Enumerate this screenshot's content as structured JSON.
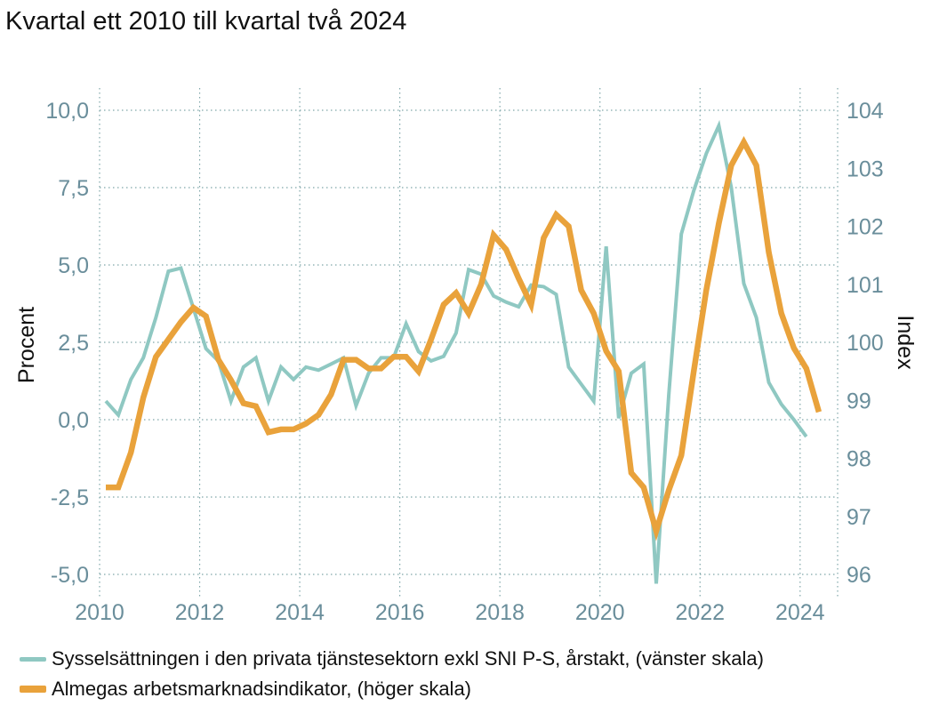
{
  "title": "Kvartal ett 2010 till kvartal två 2024",
  "chart_data": {
    "type": "line",
    "left_axis": {
      "label": "Procent",
      "range": [
        -5.4,
        10.0
      ],
      "ticks": [
        -5.0,
        -2.5,
        0.0,
        2.5,
        5.0,
        7.5,
        10.0
      ],
      "tick_labels": [
        "-5,0",
        "-2,5",
        "0,0",
        "2,5",
        "5,0",
        "7,5",
        "10,0"
      ]
    },
    "right_axis": {
      "label": "Index",
      "range": [
        95.8,
        104.0
      ],
      "ticks": [
        96,
        97,
        98,
        99,
        100,
        101,
        102,
        103,
        104
      ],
      "tick_labels": [
        "96",
        "97",
        "98",
        "99",
        "100",
        "101",
        "102",
        "103",
        "104"
      ]
    },
    "x_axis": {
      "range": [
        2010.0,
        2024.75
      ],
      "ticks": [
        2010,
        2012,
        2014,
        2016,
        2018,
        2020,
        2022,
        2024
      ],
      "tick_labels": [
        "2010",
        "2012",
        "2014",
        "2016",
        "2018",
        "2020",
        "2022",
        "2024"
      ]
    },
    "grid": true,
    "legend_position": "bottom",
    "series": [
      {
        "name": "Sysselsättningen i den privata tjänstesektorn exkl SNI P-S, årstakt, (vänster skala)",
        "axis": "left",
        "color": "#8FC8C2",
        "points": [
          [
            2010.125,
            0.6
          ],
          [
            2010.375,
            0.15
          ],
          [
            2010.625,
            1.3
          ],
          [
            2010.875,
            2.0
          ],
          [
            2011.125,
            3.3
          ],
          [
            2011.375,
            4.8
          ],
          [
            2011.625,
            4.9
          ],
          [
            2011.875,
            3.6
          ],
          [
            2012.125,
            2.3
          ],
          [
            2012.375,
            1.9
          ],
          [
            2012.625,
            0.6
          ],
          [
            2012.875,
            1.7
          ],
          [
            2013.125,
            2.0
          ],
          [
            2013.375,
            0.6
          ],
          [
            2013.625,
            1.7
          ],
          [
            2013.875,
            1.3
          ],
          [
            2014.125,
            1.7
          ],
          [
            2014.375,
            1.6
          ],
          [
            2014.625,
            1.8
          ],
          [
            2014.875,
            2.0
          ],
          [
            2015.125,
            0.45
          ],
          [
            2015.375,
            1.5
          ],
          [
            2015.625,
            2.0
          ],
          [
            2015.875,
            2.0
          ],
          [
            2016.125,
            3.1
          ],
          [
            2016.375,
            2.2
          ],
          [
            2016.625,
            1.9
          ],
          [
            2016.875,
            2.05
          ],
          [
            2017.125,
            2.8
          ],
          [
            2017.375,
            4.85
          ],
          [
            2017.625,
            4.7
          ],
          [
            2017.875,
            4.0
          ],
          [
            2018.125,
            3.8
          ],
          [
            2018.375,
            3.65
          ],
          [
            2018.625,
            4.35
          ],
          [
            2018.875,
            4.3
          ],
          [
            2019.125,
            4.05
          ],
          [
            2019.375,
            1.7
          ],
          [
            2019.625,
            1.15
          ],
          [
            2019.875,
            0.6
          ],
          [
            2020.125,
            5.6
          ],
          [
            2020.375,
            0.05
          ],
          [
            2020.625,
            1.5
          ],
          [
            2020.875,
            1.8
          ],
          [
            2021.125,
            -5.3
          ],
          [
            2021.375,
            0.8
          ],
          [
            2021.625,
            6.0
          ],
          [
            2021.875,
            7.4
          ],
          [
            2022.125,
            8.6
          ],
          [
            2022.375,
            9.5
          ],
          [
            2022.625,
            7.5
          ],
          [
            2022.875,
            4.4
          ],
          [
            2023.125,
            3.3
          ],
          [
            2023.375,
            1.2
          ],
          [
            2023.625,
            0.5
          ],
          [
            2023.875,
            0.0
          ],
          [
            2024.125,
            -0.55
          ]
        ]
      },
      {
        "name": "Almegas arbetsmarknadsindikator, (höger skala)",
        "axis": "right",
        "color": "#E9A23B",
        "points": [
          [
            2010.125,
            97.5
          ],
          [
            2010.375,
            97.5
          ],
          [
            2010.625,
            98.1
          ],
          [
            2010.875,
            99.05
          ],
          [
            2011.125,
            99.75
          ],
          [
            2011.375,
            100.05
          ],
          [
            2011.625,
            100.35
          ],
          [
            2011.875,
            100.6
          ],
          [
            2012.125,
            100.45
          ],
          [
            2012.375,
            99.7
          ],
          [
            2012.625,
            99.35
          ],
          [
            2012.875,
            98.95
          ],
          [
            2013.125,
            98.9
          ],
          [
            2013.375,
            98.45
          ],
          [
            2013.625,
            98.5
          ],
          [
            2013.875,
            98.5
          ],
          [
            2014.125,
            98.6
          ],
          [
            2014.375,
            98.75
          ],
          [
            2014.625,
            99.1
          ],
          [
            2014.875,
            99.7
          ],
          [
            2015.125,
            99.7
          ],
          [
            2015.375,
            99.55
          ],
          [
            2015.625,
            99.55
          ],
          [
            2015.875,
            99.75
          ],
          [
            2016.125,
            99.75
          ],
          [
            2016.375,
            99.5
          ],
          [
            2016.625,
            100.05
          ],
          [
            2016.875,
            100.65
          ],
          [
            2017.125,
            100.85
          ],
          [
            2017.375,
            100.5
          ],
          [
            2017.625,
            101.0
          ],
          [
            2017.875,
            101.85
          ],
          [
            2018.125,
            101.6
          ],
          [
            2018.375,
            101.1
          ],
          [
            2018.625,
            100.65
          ],
          [
            2018.875,
            101.8
          ],
          [
            2019.125,
            102.2
          ],
          [
            2019.375,
            102.0
          ],
          [
            2019.625,
            100.9
          ],
          [
            2019.875,
            100.5
          ],
          [
            2020.125,
            99.85
          ],
          [
            2020.375,
            99.5
          ],
          [
            2020.625,
            97.75
          ],
          [
            2020.875,
            97.5
          ],
          [
            2021.125,
            96.75
          ],
          [
            2021.375,
            97.45
          ],
          [
            2021.625,
            98.05
          ],
          [
            2021.875,
            99.5
          ],
          [
            2022.125,
            100.9
          ],
          [
            2022.375,
            102.05
          ],
          [
            2022.625,
            103.05
          ],
          [
            2022.875,
            103.45
          ],
          [
            2023.125,
            103.05
          ],
          [
            2023.375,
            101.55
          ],
          [
            2023.625,
            100.5
          ],
          [
            2023.875,
            99.9
          ],
          [
            2024.125,
            99.55
          ],
          [
            2024.375,
            98.8
          ]
        ]
      }
    ]
  }
}
